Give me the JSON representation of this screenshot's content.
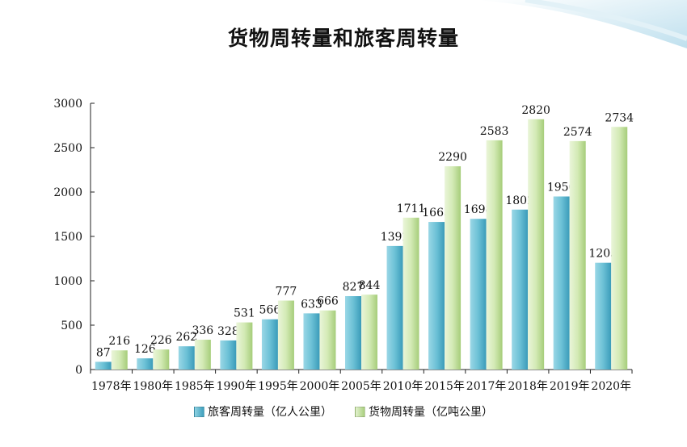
{
  "chart_data": {
    "type": "bar",
    "title": "货物周转量和旅客周转量",
    "categories": [
      "1978年",
      "1980年",
      "1985年",
      "1990年",
      "1995年",
      "2000年",
      "2005年",
      "2010年",
      "2015年",
      "2017年",
      "2018年",
      "2019年",
      "2020年"
    ],
    "series": [
      {
        "name": "旅客周转量（亿人公里）",
        "values": [
          87,
          126,
          262,
          328,
          566,
          633,
          827,
          1392,
          1663,
          1698,
          1802,
          1950,
          1203
        ],
        "color": "#5bb8cf"
      },
      {
        "name": "货物周转量（亿吨公里）",
        "values": [
          216,
          226,
          336,
          531,
          777,
          666,
          844,
          1711,
          2290,
          2583,
          2820,
          2574,
          2734
        ],
        "color": "#c9e3a5"
      }
    ],
    "ylim": [
      0,
      3000
    ],
    "yticks": [
      0,
      500,
      1000,
      1500,
      2000,
      2500,
      3000
    ],
    "grid": false,
    "legend": "bottom"
  }
}
